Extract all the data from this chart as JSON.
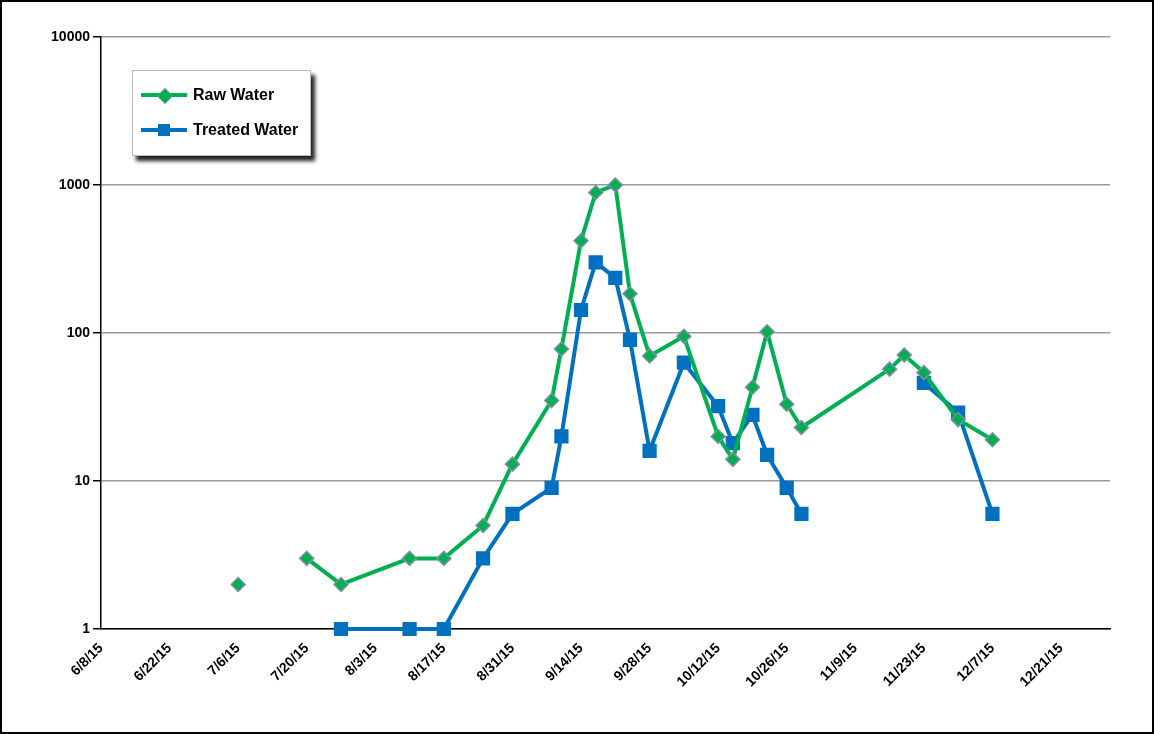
{
  "chart_data": {
    "type": "line",
    "log": "y",
    "grid": "y",
    "legend": "top left",
    "line_style": "solid",
    "xlim": [
      "--06-08",
      "--12-31"
    ],
    "xticks": [
      {
        "value": "--06-08",
        "label": "6/8/15"
      },
      {
        "value": "--06-22",
        "label": "6/22/15"
      },
      {
        "value": "--07-06",
        "label": "7/6/15"
      },
      {
        "value": "--07-20",
        "label": "7/20/15"
      },
      {
        "value": "--08-03",
        "label": "8/3/15"
      },
      {
        "value": "--08-17",
        "label": "8/17/15"
      },
      {
        "value": "--08-31",
        "label": "8/31/15"
      },
      {
        "value": "--09-14",
        "label": "9/14/15"
      },
      {
        "value": "--09-28",
        "label": "9/28/15"
      },
      {
        "value": "--10-12",
        "label": "10/12/15"
      },
      {
        "value": "--10-26",
        "label": "10/26/15"
      },
      {
        "value": "--11-09",
        "label": "11/9/15"
      },
      {
        "value": "--11-23",
        "label": "11/23/15"
      },
      {
        "value": "--12-07",
        "label": "12/7/15"
      },
      {
        "value": "--12-21",
        "label": "12/21/15"
      }
    ],
    "ylim": [
      1,
      10000
    ],
    "yticks": [
      1,
      10,
      100,
      1000,
      10000
    ],
    "series": [
      {
        "name": "Raw Water",
        "color": "#00b050",
        "marker": "diamond",
        "x": [
          "--07-06",
          "--07-13",
          "--07-20",
          "--07-27",
          "--08-10",
          "--08-17",
          "--08-25",
          "--08-31",
          "--09-08",
          "--09-10",
          "--09-14",
          "--09-17",
          "--09-21",
          "--09-24",
          "--09-28",
          "--10-05",
          "--10-12",
          "--10-15",
          "--10-19",
          "--10-22",
          "--10-26",
          "--10-29",
          "--11-16",
          "--11-19",
          "--11-23",
          "--11-30",
          "--12-07"
        ],
        "values": [
          2,
          null,
          3,
          2,
          3,
          3,
          5,
          13,
          35,
          78,
          420,
          890,
          1000,
          184,
          70,
          95,
          20,
          14,
          43,
          102,
          33,
          23,
          57,
          71,
          54,
          26,
          19
        ]
      },
      {
        "name": "Treated Water",
        "color": "#0070c0",
        "marker": "square",
        "x": [
          "--07-27",
          "--08-10",
          "--08-17",
          "--08-25",
          "--08-31",
          "--09-08",
          "--09-10",
          "--09-14",
          "--09-17",
          "--09-21",
          "--09-24",
          "--09-28",
          "--10-05",
          "--10-12",
          "--10-15",
          "--10-19",
          "--10-22",
          "--10-26",
          "--10-29",
          "--11-10",
          "--11-23",
          "--11-30",
          "--12-07"
        ],
        "values": [
          1,
          1,
          1,
          3,
          6,
          9,
          20,
          143,
          300,
          236,
          90,
          16,
          63,
          32,
          18,
          28,
          15,
          9,
          6,
          null,
          46,
          29,
          6
        ]
      }
    ]
  }
}
